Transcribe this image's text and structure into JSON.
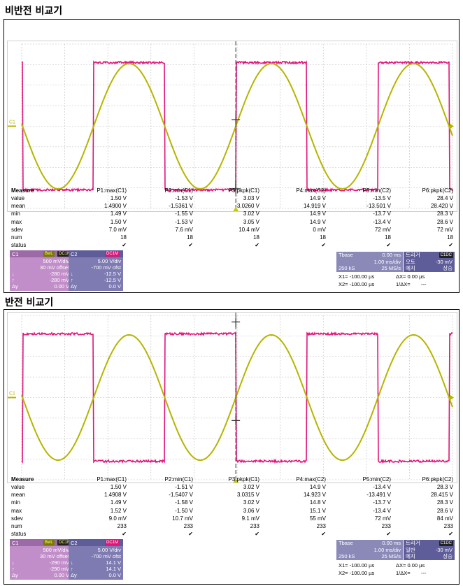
{
  "sections": [
    {
      "title": "비반전 비교기",
      "measure": {
        "title": "Measure",
        "columns": [
          "P1:max(C1)",
          "P2:min(C1)",
          "P3:pkpk(C1)",
          "P4:max(C2)",
          "P5:min(C2)",
          "P6:pkpk(C2)"
        ],
        "rows": [
          {
            "label": "value",
            "cells": [
              "1.50 V",
              "-1.53 V",
              "3.03 V",
              "14.9 V",
              "-13.5 V",
              "28.4 V"
            ]
          },
          {
            "label": "mean",
            "cells": [
              "1.4900 V",
              "-1.5361 V",
              "3.0260 V",
              "14.919 V",
              "-13.501 V",
              "28.420 V"
            ]
          },
          {
            "label": "min",
            "cells": [
              "1.49 V",
              "-1.55 V",
              "3.02 V",
              "14.9 V",
              "-13.7 V",
              "28.3 V"
            ]
          },
          {
            "label": "max",
            "cells": [
              "1.50 V",
              "-1.53 V",
              "3.05 V",
              "14.9 V",
              "-13.4 V",
              "28.6 V"
            ]
          },
          {
            "label": "sdev",
            "cells": [
              "7.0 mV",
              "7.6 mV",
              "10.4 mV",
              "0 mV",
              "72 mV",
              "72 mV"
            ]
          },
          {
            "label": "num",
            "cells": [
              "18",
              "18",
              "18",
              "18",
              "18",
              "18"
            ]
          },
          {
            "label": "status",
            "cells": [
              "✔",
              "✔",
              "✔",
              "✔",
              "✔",
              "✔"
            ]
          }
        ]
      },
      "c1": {
        "name": "C1",
        "tag1": "BwL",
        "tag2": "DC1M",
        "vdiv": "500 mV/div",
        "offset": "30 mV offset",
        "cur1": "-280 mV",
        "cur2": "-280 mV",
        "delta_label": "Δy",
        "delta": "0.00 V"
      },
      "c2": {
        "name": "C2",
        "tag2": "DC1M",
        "vdiv": "5.00 V/div",
        "offset": "-700 mV ofst",
        "cur1": "-12.5 V",
        "cur2": "-12.5 V",
        "delta_label": "Δy",
        "delta": "0.0 V"
      },
      "timebase": {
        "label": "Tbase",
        "delay": "0.00 ms",
        "div": "1.00 ms/div",
        "samples": "250 kS",
        "rate": "25 MS/s"
      },
      "trigger": {
        "label": "트리거",
        "tag": "C1DC",
        "mode": "오토",
        "level": "-30 mV",
        "type": "에지",
        "slope": "상승"
      },
      "cursors": {
        "x1": "X1=  -100.00 µs",
        "dx": "ΔX=  0.00 µs",
        "x2": "X2=  -100.00 µs",
        "idx": "1/ΔX=",
        "idx_val": "---"
      },
      "invert": false
    },
    {
      "title": "반전 비교기",
      "measure": {
        "title": "Measure",
        "columns": [
          "P1:max(C1)",
          "P2:min(C1)",
          "P3:pkpk(C1)",
          "P4:max(C2)",
          "P5:min(C2)",
          "P6:pkpk(C2)"
        ],
        "rows": [
          {
            "label": "value",
            "cells": [
              "1.50 V",
              "-1.51 V",
              "3.02 V",
              "14.9 V",
              "-13.4 V",
              "28.3 V"
            ]
          },
          {
            "label": "mean",
            "cells": [
              "1.4908 V",
              "-1.5407 V",
              "3.0315 V",
              "14.923 V",
              "-13.491 V",
              "28.415 V"
            ]
          },
          {
            "label": "min",
            "cells": [
              "1.49 V",
              "-1.58 V",
              "3.02 V",
              "14.8 V",
              "-13.7 V",
              "28.3 V"
            ]
          },
          {
            "label": "max",
            "cells": [
              "1.52 V",
              "-1.50 V",
              "3.06 V",
              "15.1 V",
              "-13.4 V",
              "28.6 V"
            ]
          },
          {
            "label": "sdev",
            "cells": [
              "9.0 mV",
              "10.7 mV",
              "9.1 mV",
              "55 mV",
              "72 mV",
              "84 mV"
            ]
          },
          {
            "label": "num",
            "cells": [
              "233",
              "233",
              "233",
              "233",
              "233",
              "233"
            ]
          },
          {
            "label": "status",
            "cells": [
              "✔",
              "✔",
              "✔",
              "✔",
              "✔",
              "✔"
            ]
          }
        ]
      },
      "c1": {
        "name": "C1",
        "tag1": "BwL",
        "tag2": "DC1M",
        "vdiv": "500 mV/div",
        "offset": "30 mV offset",
        "cur1": "-290 mV",
        "cur2": "-290 mV",
        "delta_label": "Δy",
        "delta": "0.00 V"
      },
      "c2": {
        "name": "C2",
        "tag2": "DC1M",
        "vdiv": "5.00 V/div",
        "offset": "-700 mV ofst",
        "cur1": "14.1 V",
        "cur2": "14.1 V",
        "delta_label": "Δy",
        "delta": "0.0 V"
      },
      "timebase": {
        "label": "Tbase",
        "delay": "0.00 ms",
        "div": "1.00 ms/div",
        "samples": "250 kS",
        "rate": "25 MS/s"
      },
      "trigger": {
        "label": "트리거",
        "tag": "C1DC",
        "mode": "일반",
        "level": "-30 mV",
        "type": "에지",
        "slope": "상승"
      },
      "cursors": {
        "x1": "X1=  -100.00 µs",
        "dx": "ΔX=  0.00 µs",
        "x2": "X2=  -100.00 µs",
        "idx": "1/ΔX=",
        "idx_val": "---"
      },
      "invert": true
    }
  ],
  "trace_colors": {
    "c1": "#b5b500",
    "c2": "#e0147a",
    "grid": "#bdbdbd"
  },
  "channel_marker": "C1"
}
